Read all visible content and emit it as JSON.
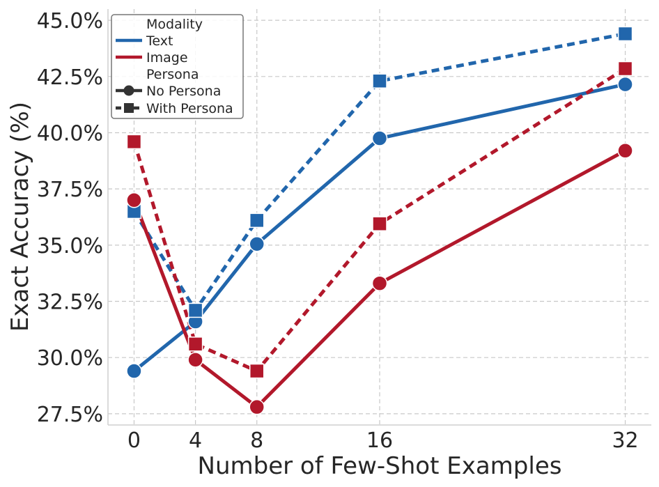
{
  "chart_data": {
    "type": "line",
    "title": "",
    "xlabel": "Number of Few-Shot Examples",
    "ylabel": "Exact Accuracy (%)",
    "x": [
      0,
      4,
      8,
      16,
      32
    ],
    "x_tick_labels": [
      "0",
      "4",
      "8",
      "16",
      "32"
    ],
    "xlim": [
      -1.7,
      33.7
    ],
    "ylim": [
      27.0,
      45.5
    ],
    "y_ticks": [
      27.5,
      30.0,
      32.5,
      35.0,
      37.5,
      40.0,
      42.5,
      45.0
    ],
    "y_tick_labels": [
      "27.5%",
      "30.0%",
      "32.5%",
      "35.0%",
      "37.5%",
      "40.0%",
      "42.5%",
      "45.0%"
    ],
    "grid": true,
    "colors": {
      "Text": "#2166ac",
      "Image": "#b2182b",
      "neutral": "#333333"
    },
    "legend": {
      "position": "top-left",
      "modality_title": "Modality",
      "text_label": "Text",
      "image_label": "Image",
      "persona_title": "Persona",
      "no_persona_label": "No Persona",
      "with_persona_label": "With Persona"
    },
    "series": [
      {
        "name": "Text / No Persona",
        "modality": "Text",
        "persona": "No Persona",
        "style": "solid",
        "marker": "circle",
        "values": [
          29.4,
          31.6,
          35.05,
          39.75,
          42.15
        ]
      },
      {
        "name": "Text / With Persona",
        "modality": "Text",
        "persona": "With Persona",
        "style": "dashed",
        "marker": "square",
        "values": [
          36.5,
          32.1,
          36.1,
          42.3,
          44.4
        ]
      },
      {
        "name": "Image / No Persona",
        "modality": "Image",
        "persona": "No Persona",
        "style": "solid",
        "marker": "circle",
        "values": [
          37.0,
          29.9,
          27.8,
          33.3,
          39.2
        ]
      },
      {
        "name": "Image / With Persona",
        "modality": "Image",
        "persona": "With Persona",
        "style": "dashed",
        "marker": "square",
        "values": [
          39.6,
          30.6,
          29.4,
          35.95,
          42.85
        ]
      }
    ]
  }
}
